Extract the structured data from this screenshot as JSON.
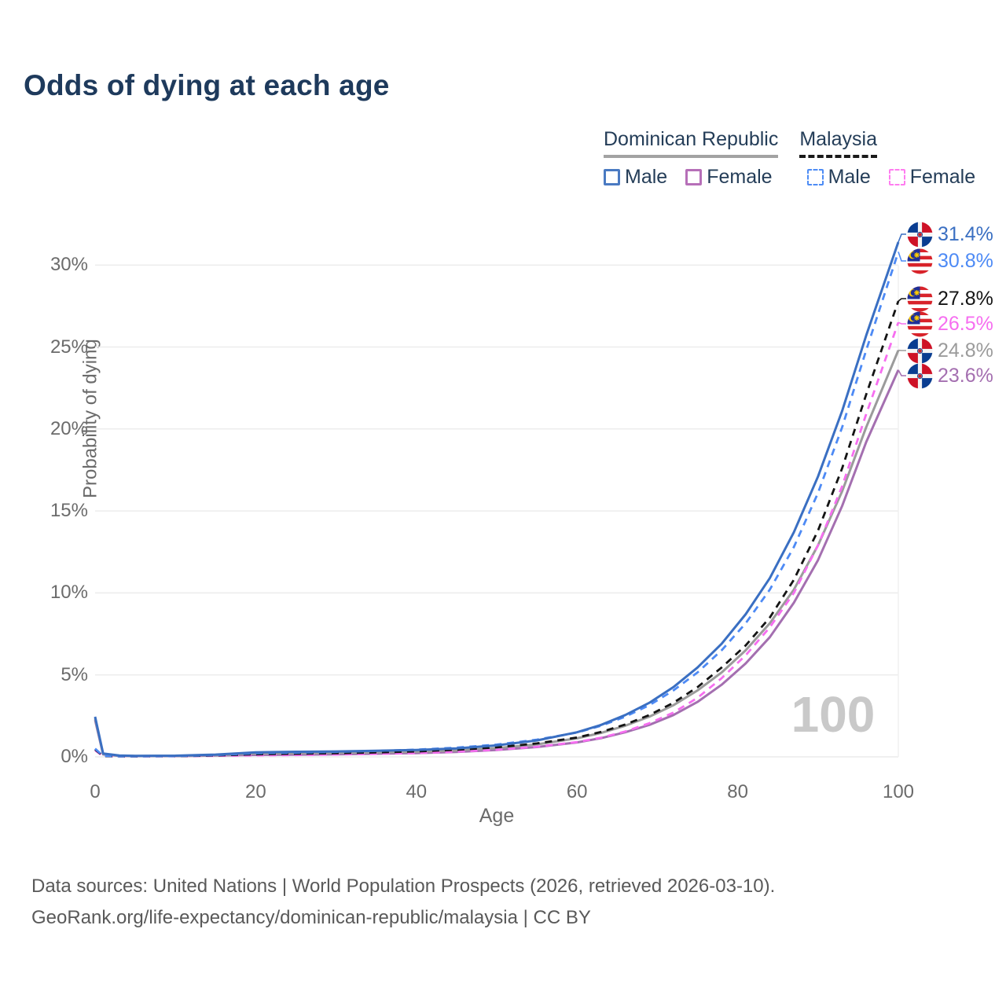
{
  "page": {
    "title": "Odds of dying at each age"
  },
  "legend": {
    "groups": [
      {
        "title": "Dominican Republic",
        "line_style": "solid",
        "line_color": "#a3a3a3"
      },
      {
        "title": "Malaysia",
        "line_style": "dashed",
        "line_color": "#1a1a1a"
      }
    ],
    "items": [
      {
        "label": "Male",
        "country": "Dominican Republic",
        "swatch_style": "solid",
        "color": "#4a7ac2"
      },
      {
        "label": "Female",
        "country": "Dominican Republic",
        "swatch_style": "solid",
        "color": "#b66fb8"
      },
      {
        "label": "Male",
        "country": "Malaysia",
        "swatch_style": "dashed",
        "color": "#4d8cf5"
      },
      {
        "label": "Female",
        "country": "Malaysia",
        "swatch_style": "dashed",
        "color": "#ff7df0"
      }
    ]
  },
  "chart_data": {
    "type": "line",
    "title": "Odds of dying at each age",
    "xlabel": "Age",
    "ylabel": "Probability of dying",
    "x_ticks": [
      0,
      20,
      40,
      60,
      80,
      100
    ],
    "y_tick_labels": [
      "0%",
      "5%",
      "10%",
      "15%",
      "20%",
      "25%",
      "30%"
    ],
    "y_tick_values": [
      0,
      5,
      10,
      15,
      20,
      25,
      30
    ],
    "xlim": [
      0,
      100
    ],
    "ylim_pct": [
      0,
      32
    ],
    "grid": "horizontal",
    "hover_age_watermark": "100",
    "ages": [
      0,
      1,
      3,
      5,
      10,
      15,
      20,
      25,
      30,
      35,
      40,
      45,
      50,
      55,
      60,
      63,
      66,
      69,
      72,
      75,
      78,
      81,
      84,
      87,
      90,
      93,
      96,
      100
    ],
    "series": [
      {
        "name": "Dominican Republic — Male",
        "country": "Dominican Republic",
        "sex": "Male",
        "color": "#3a6fc2",
        "dash": "solid",
        "flag": "do",
        "end_label": "31.4%",
        "end_value_pct": 31.4,
        "values": [
          2.45,
          0.2,
          0.08,
          0.06,
          0.07,
          0.14,
          0.28,
          0.31,
          0.33,
          0.37,
          0.42,
          0.52,
          0.7,
          1.0,
          1.5,
          1.95,
          2.55,
          3.3,
          4.25,
          5.45,
          6.9,
          8.7,
          10.9,
          13.7,
          17.1,
          21.1,
          25.7,
          31.4
        ]
      },
      {
        "name": "Malaysia — Male",
        "country": "Malaysia",
        "sex": "Male",
        "color": "#4d8af5",
        "dash": "dashed",
        "flag": "my",
        "end_label": "30.8%",
        "end_value_pct": 30.8,
        "values": [
          0.5,
          0.06,
          0.04,
          0.04,
          0.05,
          0.11,
          0.22,
          0.26,
          0.3,
          0.36,
          0.44,
          0.56,
          0.75,
          1.05,
          1.48,
          1.9,
          2.45,
          3.15,
          4.05,
          5.15,
          6.5,
          8.15,
          10.2,
          12.8,
          16.1,
          20.1,
          24.8,
          30.8
        ]
      },
      {
        "name": "Malaysia — Both sexes",
        "country": "Malaysia",
        "sex": "Both",
        "color": "#141414",
        "dash": "dashed",
        "flag": "my",
        "end_label": "27.8%",
        "end_value_pct": 27.8,
        "values": [
          0.45,
          0.05,
          0.035,
          0.035,
          0.045,
          0.085,
          0.16,
          0.19,
          0.22,
          0.27,
          0.33,
          0.43,
          0.58,
          0.82,
          1.18,
          1.52,
          1.97,
          2.55,
          3.3,
          4.25,
          5.45,
          6.8,
          8.5,
          10.8,
          13.8,
          17.6,
          22.1,
          27.8
        ]
      },
      {
        "name": "Malaysia — Female",
        "country": "Malaysia",
        "sex": "Female",
        "color": "#f66ef0",
        "dash": "dashed",
        "flag": "my",
        "end_label": "26.5%",
        "end_value_pct": 26.5,
        "values": [
          0.4,
          0.045,
          0.03,
          0.03,
          0.04,
          0.06,
          0.09,
          0.11,
          0.14,
          0.18,
          0.23,
          0.31,
          0.43,
          0.62,
          0.9,
          1.17,
          1.55,
          2.05,
          2.7,
          3.6,
          4.8,
          6.2,
          7.9,
          10.0,
          12.9,
          16.5,
          20.9,
          26.5
        ]
      },
      {
        "name": "Dominican Republic — Both sexes",
        "country": "Dominican Republic",
        "sex": "Both",
        "color": "#9b9b9b",
        "dash": "solid",
        "flag": "do",
        "end_label": "24.8%",
        "end_value_pct": 24.8,
        "values": [
          2.35,
          0.17,
          0.07,
          0.055,
          0.06,
          0.11,
          0.2,
          0.22,
          0.24,
          0.27,
          0.31,
          0.39,
          0.53,
          0.76,
          1.13,
          1.46,
          1.9,
          2.45,
          3.15,
          4.05,
          5.15,
          6.5,
          8.15,
          10.2,
          12.9,
          16.2,
          20.1,
          24.8
        ]
      },
      {
        "name": "Dominican Republic — Female",
        "country": "Dominican Republic",
        "sex": "Female",
        "color": "#a46fb0",
        "dash": "solid",
        "flag": "do",
        "end_label": "23.6%",
        "end_value_pct": 23.6,
        "values": [
          2.25,
          0.15,
          0.06,
          0.05,
          0.05,
          0.08,
          0.12,
          0.14,
          0.16,
          0.19,
          0.23,
          0.3,
          0.42,
          0.6,
          0.88,
          1.14,
          1.5,
          1.95,
          2.55,
          3.35,
          4.4,
          5.7,
          7.3,
          9.4,
          12.0,
          15.3,
          19.2,
          23.6
        ]
      }
    ]
  },
  "footer": {
    "line1": "Data sources: United Nations | World Population Prospects (2026, retrieved 2026-03-10).",
    "line2": "GeoRank.org/life-expectancy/dominican-republic/malaysia | CC BY"
  }
}
